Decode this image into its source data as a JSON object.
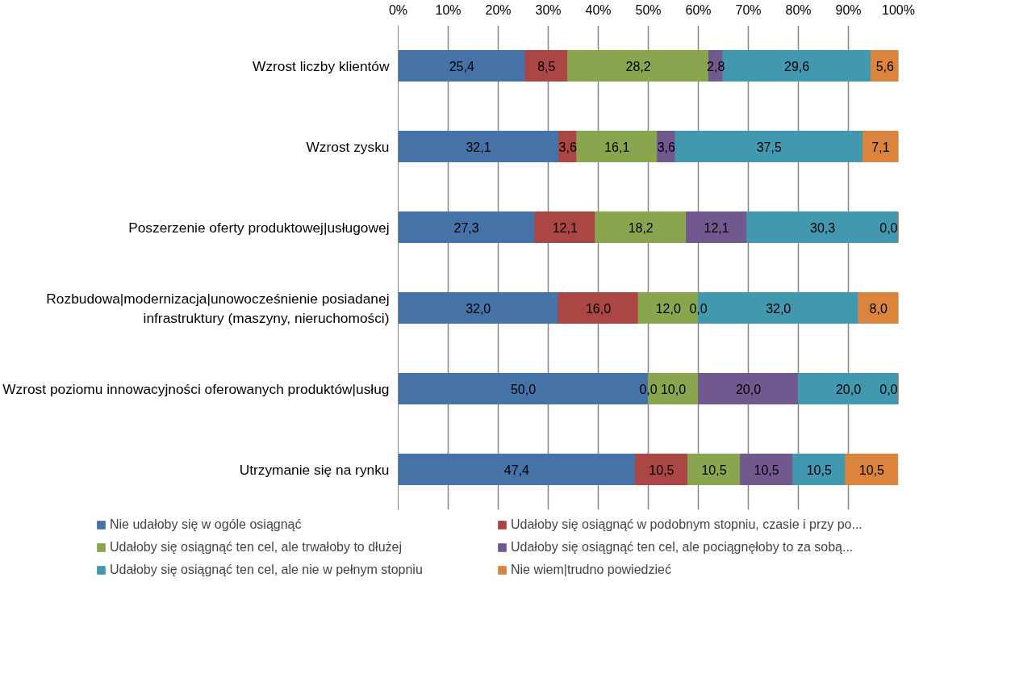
{
  "chart_data": {
    "type": "bar",
    "orientation": "horizontal",
    "stacked": true,
    "categories": [
      "Wzrost liczby klientów",
      "Wzrost zysku",
      "Poszerzenie oferty produktowej|usługowej",
      "Rozbudowa|modernizacja|unowocześnienie posiadanej infrastruktury (maszyny, nieruchomości)",
      "Wzrost poziomu innowacyjności oferowanych produktów|usług",
      "Utrzymanie się na rynku"
    ],
    "series": [
      {
        "name": "Nie udałoby się w ogóle osiągnąć",
        "color": "#4572a7",
        "values": [
          25.4,
          32.1,
          27.3,
          32.0,
          50.0,
          47.4
        ],
        "value_labels": [
          "25,4",
          "32,1",
          "27,3",
          "32,0",
          "50,0",
          "47,4"
        ]
      },
      {
        "name": "Udałoby się osiągnąć w podobnym stopniu, czasie i przy po...",
        "color": "#aa4643",
        "values": [
          8.5,
          3.6,
          12.1,
          16.0,
          0.0,
          10.5
        ],
        "value_labels": [
          "8,5",
          "3,6",
          "12,1",
          "16,0",
          "0,0",
          "10,5"
        ]
      },
      {
        "name": "Udałoby się osiągnąć ten cel, ale trwałoby to dłużej",
        "color": "#89a54e",
        "values": [
          28.2,
          16.1,
          18.2,
          12.0,
          10.0,
          10.5
        ],
        "value_labels": [
          "28,2",
          "16,1",
          "18,2",
          "12,0",
          "10,0",
          "10,5"
        ]
      },
      {
        "name": "Udałoby się osiągnąć ten cel, ale pociągnęłoby to za sobą...",
        "color": "#71588f",
        "values": [
          2.8,
          3.6,
          12.1,
          0.0,
          20.0,
          10.5
        ],
        "value_labels": [
          "2,8",
          "3,6",
          "12,1",
          "0,0",
          "20,0",
          "10,5"
        ]
      },
      {
        "name": "Udałoby się osiągnąć ten cel, ale nie w pełnym stopniu",
        "color": "#4198af",
        "values": [
          29.6,
          37.5,
          30.3,
          32.0,
          20.0,
          10.5
        ],
        "value_labels": [
          "29,6",
          "37,5",
          "30,3",
          "32,0",
          "20,0",
          "10,5"
        ]
      },
      {
        "name": "Nie wiem|trudno powiedzieć",
        "color": "#db843d",
        "values": [
          5.6,
          7.1,
          0.0,
          8.0,
          0.0,
          10.5
        ],
        "value_labels": [
          "5,6",
          "7,1",
          "0,0",
          "8,0",
          "0,0",
          "10,5"
        ]
      }
    ],
    "xlim": [
      0,
      100
    ],
    "xticks": [
      {
        "value": 0,
        "label": "0%"
      },
      {
        "value": 10,
        "label": "10%"
      },
      {
        "value": 20,
        "label": "20%"
      },
      {
        "value": 30,
        "label": "30%"
      },
      {
        "value": 40,
        "label": "40%"
      },
      {
        "value": 50,
        "label": "50%"
      },
      {
        "value": 60,
        "label": "60%"
      },
      {
        "value": 70,
        "label": "70%"
      },
      {
        "value": 80,
        "label": "80%"
      },
      {
        "value": 90,
        "label": "90%"
      },
      {
        "value": 100,
        "label": "100%"
      }
    ],
    "grid": "x",
    "legend": "bottom"
  }
}
